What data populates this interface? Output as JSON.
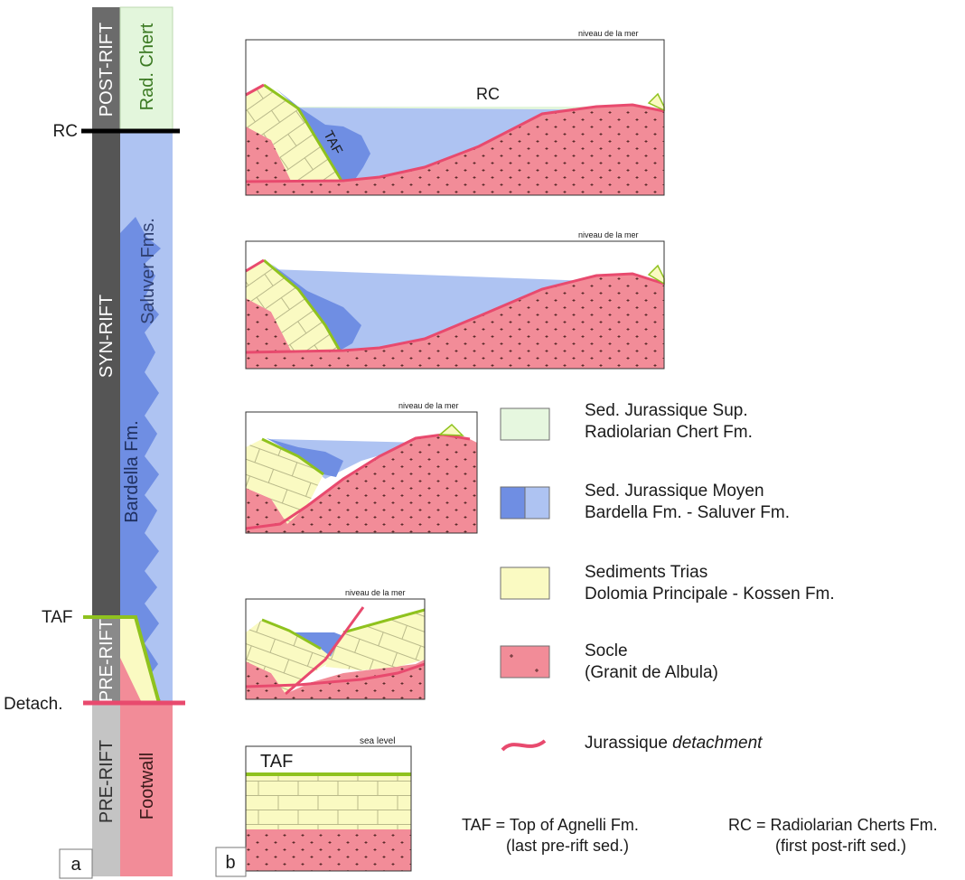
{
  "column": {
    "intervals": {
      "post_rift": "POST-RIFT",
      "syn_rift": "SYN-RIFT",
      "pre_rift_upper": "PRE-RIFT",
      "pre_rift_lower": "PRE-RIFT"
    },
    "units": {
      "rad_chert": "Rad. Chert",
      "saluver": "Saluver Fms.",
      "bardella": "Bardella Fm.",
      "footwall": "Footwall"
    },
    "markers": {
      "rc": "RC",
      "taf": "TAF",
      "detach": "Detach."
    },
    "panel_label": "a"
  },
  "sections": {
    "sea_level_fr": "niveau de la mer",
    "sea_level_en": "sea level",
    "rc_label": "RC",
    "taf_label": "TAF",
    "panel_label": "b"
  },
  "legend": {
    "items": [
      {
        "line1": "Sed. Jurassique Sup.",
        "line2": "Radiolarian Chert Fm.",
        "color": "#e6f7df"
      },
      {
        "line1": "Sed. Jurassique Moyen",
        "line2": "Bardella Fm. - Saluver Fm.",
        "color_dark": "#6f8ee3",
        "color_light": "#aec3f2"
      },
      {
        "line1": "Sediments Trias",
        "line2": "Dolomia Principale - Kossen Fm.",
        "color": "#fafac2"
      },
      {
        "line1": "Socle",
        "line2": "(Granit de Albula)",
        "color": "#f28c98"
      }
    ],
    "detachment": {
      "prefix": "Jurassique ",
      "italic": "detachment",
      "color": "#e84a6e"
    }
  },
  "footnotes": {
    "taf_line1": "TAF = Top of Agnelli Fm.",
    "taf_line2": "(last pre-rift sed.)",
    "rc_line1": "RC = Radiolarian Cherts Fm.",
    "rc_line2": "(first post-rift sed.)"
  }
}
